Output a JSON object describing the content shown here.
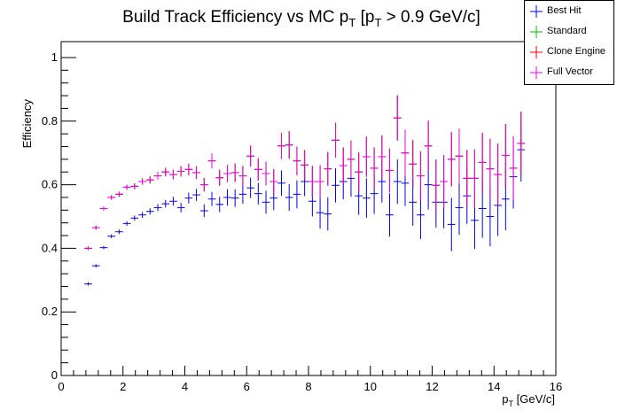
{
  "chart_data": {
    "type": "scatter",
    "title_main": "Build Track Efficiency vs MC p",
    "title_sub": "T",
    "title_bracket_open": " [p",
    "title_bracket_sub": "T",
    "title_rest": " > 0.9 GeV/c]",
    "ylabel": "Efficiency",
    "xlabel_main": "p",
    "xlabel_sub": "T",
    "xlabel_rest": " [GeV/c]",
    "xlim": [
      0,
      16
    ],
    "ylim": [
      0,
      1.05
    ],
    "x_ticks": [
      "0",
      "2",
      "4",
      "6",
      "8",
      "10",
      "12",
      "14",
      "16"
    ],
    "y_ticks": [
      "0",
      "0.2",
      "0.4",
      "0.6",
      "0.8",
      "1"
    ],
    "legend_position": "top-right",
    "x": [
      0.875,
      1.125,
      1.375,
      1.625,
      1.875,
      2.125,
      2.375,
      2.625,
      2.875,
      3.125,
      3.375,
      3.625,
      3.875,
      4.125,
      4.375,
      4.625,
      4.875,
      5.125,
      5.375,
      5.625,
      5.875,
      6.125,
      6.375,
      6.625,
      6.875,
      7.125,
      7.375,
      7.625,
      7.875,
      8.125,
      8.375,
      8.625,
      8.875,
      9.125,
      9.375,
      9.625,
      9.875,
      10.125,
      10.375,
      10.625,
      10.875,
      11.125,
      11.375,
      11.625,
      11.875,
      12.125,
      12.375,
      12.625,
      12.875,
      13.125,
      13.375,
      13.625,
      13.875,
      14.125,
      14.375,
      14.625,
      14.875
    ],
    "series": [
      {
        "name": "Best Hit",
        "color": "#0000ee",
        "values": [
          0.288,
          0.345,
          0.402,
          0.438,
          0.452,
          0.478,
          0.495,
          0.505,
          0.516,
          0.528,
          0.54,
          0.548,
          0.528,
          0.558,
          0.568,
          0.518,
          0.555,
          0.538,
          0.56,
          0.558,
          0.57,
          0.59,
          0.572,
          0.545,
          0.558,
          0.605,
          0.56,
          0.57,
          0.61,
          0.548,
          0.512,
          0.508,
          0.598,
          0.61,
          0.62,
          0.565,
          0.558,
          0.572,
          0.61,
          0.505,
          0.61,
          0.605,
          0.545,
          0.505,
          0.6,
          0.545,
          0.545,
          0.475,
          0.528,
          0.565,
          0.488,
          0.525,
          0.5,
          0.535,
          0.555,
          0.625,
          0.71
        ],
        "errors": [
          0.005,
          0.005,
          0.005,
          0.006,
          0.007,
          0.007,
          0.008,
          0.009,
          0.01,
          0.011,
          0.012,
          0.014,
          0.015,
          0.017,
          0.019,
          0.02,
          0.022,
          0.024,
          0.026,
          0.028,
          0.03,
          0.032,
          0.034,
          0.036,
          0.038,
          0.04,
          0.042,
          0.044,
          0.046,
          0.048,
          0.05,
          0.052,
          0.054,
          0.056,
          0.058,
          0.06,
          0.062,
          0.064,
          0.066,
          0.068,
          0.07,
          0.072,
          0.074,
          0.076,
          0.078,
          0.08,
          0.082,
          0.084,
          0.086,
          0.088,
          0.09,
          0.092,
          0.094,
          0.096,
          0.098,
          0.1,
          0.1
        ]
      },
      {
        "name": "Standard",
        "color": "#00bb00",
        "values": [
          0.4,
          0.465,
          0.525,
          0.56,
          0.57,
          0.592,
          0.595,
          0.61,
          0.615,
          0.628,
          0.64,
          0.632,
          0.642,
          0.648,
          0.638,
          0.6,
          0.675,
          0.622,
          0.635,
          0.638,
          0.628,
          0.69,
          0.648,
          0.635,
          0.61,
          0.722,
          0.725,
          0.675,
          0.662,
          0.61,
          0.61,
          0.65,
          0.74,
          0.66,
          0.68,
          0.64,
          0.688,
          0.652,
          0.688,
          0.645,
          0.81,
          0.7,
          0.665,
          0.628,
          0.722,
          0.598,
          0.61,
          0.68,
          0.69,
          0.62,
          0.62,
          0.67,
          0.65,
          0.632,
          0.692,
          0.652,
          0.73
        ],
        "errors": [
          0.006,
          0.006,
          0.006,
          0.007,
          0.008,
          0.008,
          0.009,
          0.01,
          0.011,
          0.012,
          0.013,
          0.015,
          0.016,
          0.018,
          0.02,
          0.021,
          0.023,
          0.025,
          0.027,
          0.029,
          0.031,
          0.033,
          0.035,
          0.037,
          0.039,
          0.041,
          0.043,
          0.045,
          0.047,
          0.049,
          0.051,
          0.053,
          0.055,
          0.057,
          0.059,
          0.061,
          0.063,
          0.065,
          0.067,
          0.069,
          0.071,
          0.073,
          0.075,
          0.077,
          0.079,
          0.081,
          0.083,
          0.085,
          0.087,
          0.089,
          0.091,
          0.093,
          0.095,
          0.097,
          0.099,
          0.1,
          0.1
        ]
      },
      {
        "name": "Clone Engine",
        "color": "#ee0000",
        "values": [
          0.4,
          0.465,
          0.525,
          0.56,
          0.57,
          0.592,
          0.595,
          0.61,
          0.615,
          0.628,
          0.64,
          0.632,
          0.642,
          0.648,
          0.638,
          0.6,
          0.675,
          0.622,
          0.635,
          0.638,
          0.628,
          0.69,
          0.648,
          0.635,
          0.61,
          0.722,
          0.725,
          0.675,
          0.662,
          0.61,
          0.61,
          0.65,
          0.74,
          0.66,
          0.68,
          0.64,
          0.688,
          0.652,
          0.688,
          0.645,
          0.81,
          0.7,
          0.665,
          0.628,
          0.722,
          0.598,
          0.61,
          0.68,
          0.69,
          0.62,
          0.62,
          0.67,
          0.65,
          0.632,
          0.692,
          0.652,
          0.73
        ],
        "errors": [
          0.006,
          0.006,
          0.006,
          0.007,
          0.008,
          0.008,
          0.009,
          0.01,
          0.011,
          0.012,
          0.013,
          0.015,
          0.016,
          0.018,
          0.02,
          0.021,
          0.023,
          0.025,
          0.027,
          0.029,
          0.031,
          0.033,
          0.035,
          0.037,
          0.039,
          0.041,
          0.043,
          0.045,
          0.047,
          0.049,
          0.051,
          0.053,
          0.055,
          0.057,
          0.059,
          0.061,
          0.063,
          0.065,
          0.067,
          0.069,
          0.071,
          0.073,
          0.075,
          0.077,
          0.079,
          0.081,
          0.083,
          0.085,
          0.087,
          0.089,
          0.091,
          0.093,
          0.095,
          0.097,
          0.099,
          0.1,
          0.1
        ]
      },
      {
        "name": "Full Vector",
        "color": "#ee00ee",
        "values": [
          0.4,
          0.465,
          0.525,
          0.56,
          0.57,
          0.592,
          0.595,
          0.61,
          0.615,
          0.628,
          0.64,
          0.632,
          0.642,
          0.648,
          0.638,
          0.6,
          0.675,
          0.622,
          0.635,
          0.638,
          0.628,
          0.69,
          0.648,
          0.635,
          0.61,
          0.722,
          0.725,
          0.675,
          0.662,
          0.61,
          0.61,
          0.65,
          0.74,
          0.66,
          0.68,
          0.64,
          0.688,
          0.652,
          0.688,
          0.645,
          0.81,
          0.7,
          0.665,
          0.628,
          0.722,
          0.598,
          0.61,
          0.68,
          0.69,
          0.62,
          0.62,
          0.67,
          0.65,
          0.632,
          0.692,
          0.652,
          0.73
        ],
        "errors": [
          0.006,
          0.006,
          0.006,
          0.007,
          0.008,
          0.008,
          0.009,
          0.01,
          0.011,
          0.012,
          0.013,
          0.015,
          0.016,
          0.018,
          0.02,
          0.021,
          0.023,
          0.025,
          0.027,
          0.029,
          0.031,
          0.033,
          0.035,
          0.037,
          0.039,
          0.041,
          0.043,
          0.045,
          0.047,
          0.049,
          0.051,
          0.053,
          0.055,
          0.057,
          0.059,
          0.061,
          0.063,
          0.065,
          0.067,
          0.069,
          0.071,
          0.073,
          0.075,
          0.077,
          0.079,
          0.081,
          0.083,
          0.085,
          0.087,
          0.089,
          0.091,
          0.093,
          0.095,
          0.097,
          0.099,
          0.1,
          0.1
        ]
      }
    ]
  }
}
